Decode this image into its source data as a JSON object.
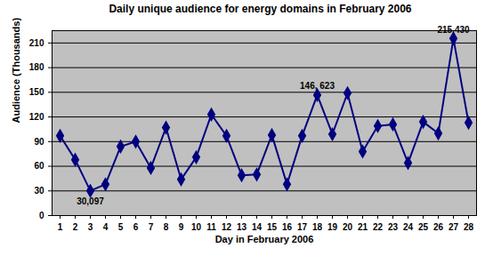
{
  "chart_data": {
    "type": "line",
    "title": "Daily unique audience for energy domains in February 2006",
    "x_label": "Day in February 2006",
    "y_label": "Audience (Thousands)",
    "categories": [
      1,
      2,
      3,
      4,
      5,
      6,
      7,
      8,
      9,
      10,
      11,
      12,
      13,
      14,
      15,
      16,
      17,
      18,
      19,
      20,
      21,
      22,
      23,
      24,
      25,
      26,
      27,
      28
    ],
    "values": [
      97,
      68,
      30.097,
      38,
      84,
      90,
      58,
      107,
      44,
      71,
      123,
      97,
      49,
      50,
      98,
      38,
      97,
      146.623,
      99,
      149,
      78,
      109,
      111,
      64,
      114,
      100,
      215.43,
      113
    ],
    "value_labels": [
      null,
      null,
      "30,097",
      null,
      null,
      null,
      null,
      null,
      null,
      null,
      null,
      null,
      null,
      null,
      null,
      null,
      null,
      "146, 623",
      null,
      null,
      null,
      null,
      null,
      null,
      null,
      null,
      "215,430",
      null
    ],
    "color": "#000080",
    "marker": "diamond",
    "ylim": [
      0,
      225
    ],
    "yticks": [
      0,
      30,
      60,
      90,
      120,
      150,
      180,
      210
    ],
    "grid": true
  }
}
